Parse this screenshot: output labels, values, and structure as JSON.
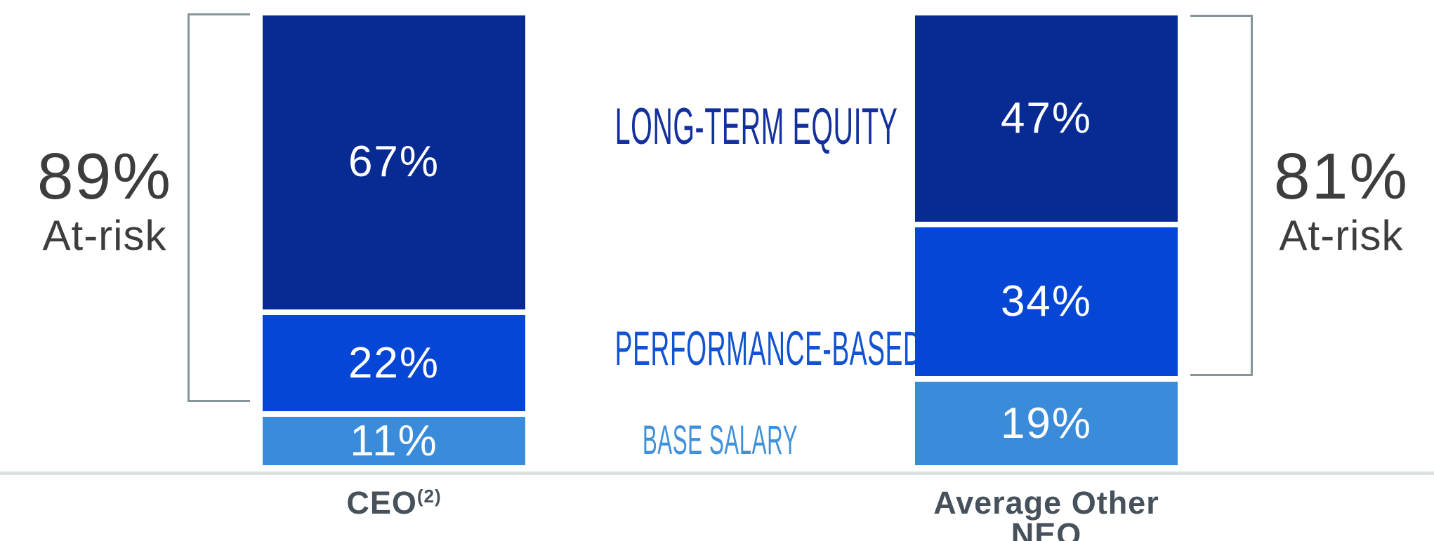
{
  "chart_data": {
    "type": "bar",
    "subtype": "stacked-percentage-column",
    "categories": [
      "CEO(2)",
      "Average Other NEO"
    ],
    "series": [
      {
        "name": "LONG-TERM EQUITY",
        "values": [
          67,
          47
        ]
      },
      {
        "name": "PERFORMANCE-BASED CASH",
        "values": [
          22,
          34
        ]
      },
      {
        "name": "BASE SALARY",
        "values": [
          11,
          19
        ]
      }
    ],
    "value_labels": [
      "67%",
      "22%",
      "11%",
      "47%",
      "34%",
      "19%"
    ],
    "annotations": [
      {
        "text": "89% At-risk",
        "category": "CEO(2)",
        "covers_series": [
          "LONG-TERM EQUITY",
          "PERFORMANCE-BASED CASH"
        ]
      },
      {
        "text": "81% At-risk",
        "category": "Average Other NEO",
        "covers_series": [
          "LONG-TERM EQUITY",
          "PERFORMANCE-BASED CASH"
        ]
      }
    ],
    "title": "",
    "xlabel": "",
    "ylabel": "",
    "ylim": [
      0,
      100
    ],
    "grid": false,
    "legend_position": "center-between-bars"
  },
  "colors": {
    "long_term_equity": "#072b92",
    "performance_based_cash": "#0646d7",
    "base_salary": "#3a8cda",
    "legend_long_term_equity": "#14309c",
    "legend_performance_based_cash": "#1253d0",
    "legend_base_salary": "#4090da",
    "at_risk_text": "#3d3d3d",
    "category_text": "#46515b",
    "bracket": "#86959a",
    "baseline": "#dbe1e1",
    "value_text": "#ffffff"
  },
  "left_bar": {
    "at_risk_value": "89%",
    "at_risk_label": "At-risk",
    "segments": [
      {
        "name": "long-term-equity",
        "label": "67%",
        "value": 67
      },
      {
        "name": "performance-based-cash",
        "label": "22%",
        "value": 22
      },
      {
        "name": "base-salary",
        "label": "11%",
        "value": 11
      }
    ],
    "category": "CEO",
    "category_superscript": "(2)"
  },
  "right_bar": {
    "at_risk_value": "81%",
    "at_risk_label": "At-risk",
    "segments": [
      {
        "name": "long-term-equity",
        "label": "47%",
        "value": 47
      },
      {
        "name": "performance-based-cash",
        "label": "34%",
        "value": 34
      },
      {
        "name": "base-salary",
        "label": "19%",
        "value": 19
      }
    ],
    "category": "Average Other NEO"
  },
  "legend": {
    "long_term_equity": "LONG-TERM EQUITY",
    "performance_based_cash": "PERFORMANCE-BASED CASH",
    "base_salary": "BASE SALARY"
  }
}
